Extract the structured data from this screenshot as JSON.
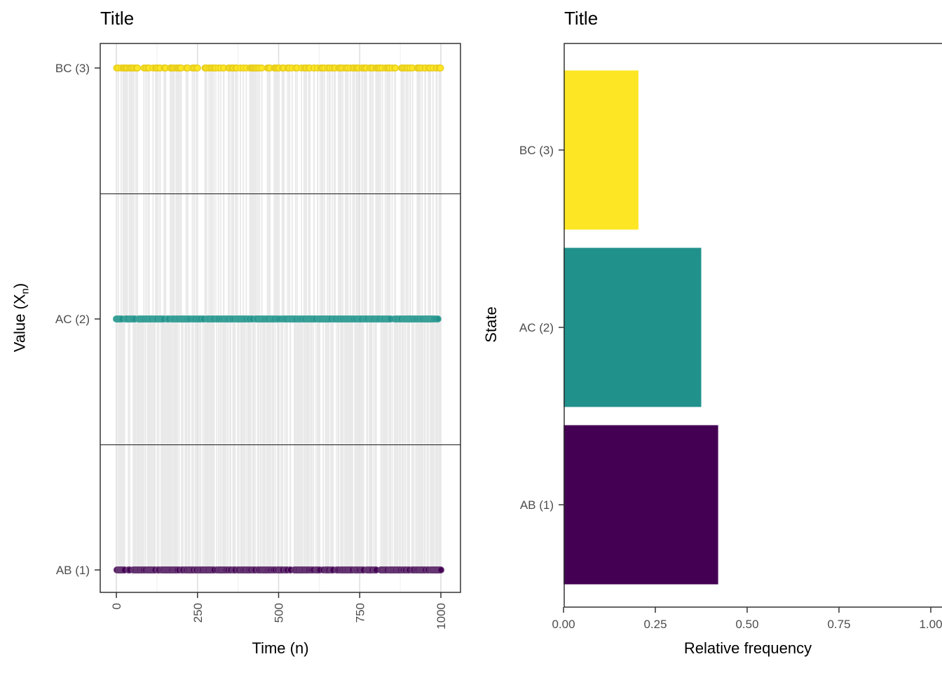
{
  "page": {
    "background": "#ffffff"
  },
  "style": {
    "axis_text_color": "#4d4d4d",
    "axis_line_color": "#333333",
    "tick_color": "#333333",
    "grid_major_color": "#dedede",
    "grid_minor_color": "#efefef",
    "title_color": "#000000"
  },
  "chart_data": [
    {
      "type": "scatter",
      "subtype": "markov-chain-trace",
      "title": "Title",
      "xlabel": "Time (n)",
      "ylabel": "Value (X_n)",
      "ylabel_parts": {
        "pre": "Value (X",
        "sub": "n",
        "post": ")"
      },
      "xlim": [
        0,
        1000
      ],
      "x_ticks": [
        0,
        250,
        500,
        750,
        1000
      ],
      "x_tick_labels": [
        "0",
        "250",
        "500",
        "750",
        "1000"
      ],
      "x_minor_ticks": [
        125,
        375,
        625,
        875
      ],
      "categories": [
        "AB (1)",
        "AC (2)",
        "BC (3)"
      ],
      "category_levels": [
        1,
        2,
        3
      ],
      "n_points": 1000,
      "rel_frequencies": [
        0.421,
        0.375,
        0.204
      ],
      "point_colors": [
        "#440154",
        "#21918c",
        "#fde725"
      ],
      "point_stroke_colors": [
        "#653672",
        "#3aa198",
        "#e9cf1e"
      ],
      "trace_line_color": "#e9e9e9",
      "state_divider_color": "#1b1b1b",
      "grid": "vertical major+minor",
      "legend": "none",
      "seed": 987654321
    },
    {
      "type": "bar",
      "orientation": "horizontal",
      "title": "Title",
      "xlabel": "Relative frequency",
      "ylabel": "State",
      "categories": [
        "AB (1)",
        "AC (2)",
        "BC (3)"
      ],
      "values": [
        0.421,
        0.375,
        0.204
      ],
      "xlim": [
        0,
        1
      ],
      "x_ticks": [
        0,
        0.25,
        0.5,
        0.75,
        1
      ],
      "x_tick_labels": [
        "0.00",
        "0.25",
        "0.50",
        "0.75",
        "1.00"
      ],
      "bar_colors": [
        "#440154",
        "#21918c",
        "#fde725"
      ],
      "grid": "none",
      "legend": "none"
    }
  ]
}
